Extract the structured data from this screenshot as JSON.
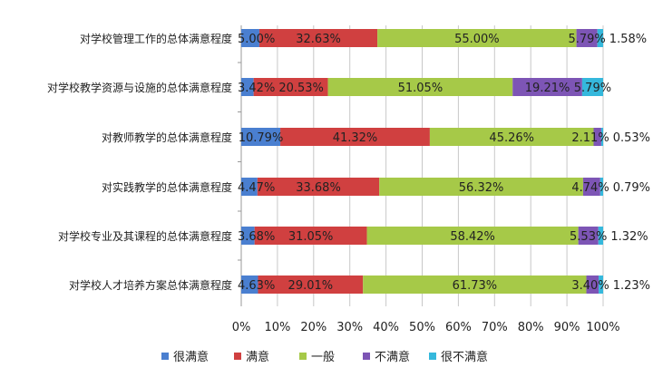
{
  "chart_data": {
    "type": "bar",
    "orientation": "horizontal",
    "stacked": true,
    "title": "",
    "xlabel": "",
    "ylabel": "",
    "xlim": [
      0,
      100
    ],
    "x_ticks": [
      "0%",
      "10%",
      "20%",
      "30%",
      "40%",
      "50%",
      "60%",
      "70%",
      "80%",
      "90%",
      "100%"
    ],
    "grid": true,
    "legend_position": "bottom",
    "categories": [
      "对学校管理工作的总体满意程度",
      "对学校教学资源与设施的总体满意程度",
      "对教师教学的总体满意程度",
      "对实践教学的总体满意程度",
      "对学校专业及其课程的总体满意程度",
      "对学校人才培养方案总体满意程度"
    ],
    "series": [
      {
        "name": "很满意",
        "color": "#4a7fd0",
        "values": [
          5.0,
          3.42,
          10.79,
          4.47,
          3.68,
          4.63
        ],
        "labels": [
          "5.00%",
          "3.42%",
          "10.79%",
          "4.47%",
          "3.68%",
          "4.63%"
        ]
      },
      {
        "name": "满意",
        "color": "#d04040",
        "values": [
          32.63,
          20.53,
          41.32,
          33.68,
          31.05,
          29.01
        ],
        "labels": [
          "32.63%",
          "20.53%",
          "41.32%",
          "33.68%",
          "31.05%",
          "29.01%"
        ]
      },
      {
        "name": "一般",
        "color": "#a6c948",
        "values": [
          55.0,
          51.05,
          45.26,
          56.32,
          58.42,
          61.73
        ],
        "labels": [
          "55.00%",
          "51.05%",
          "45.26%",
          "56.32%",
          "58.42%",
          "61.73%"
        ]
      },
      {
        "name": "不满意",
        "color": "#7d55b5",
        "values": [
          5.79,
          19.21,
          2.11,
          4.74,
          5.53,
          3.4
        ],
        "labels": [
          "5.79%",
          "19.21%",
          "2.11%",
          "4.74%",
          "5.53%",
          "3.40%"
        ]
      },
      {
        "name": "很不满意",
        "color": "#35b8dc",
        "values": [
          1.58,
          5.79,
          0.53,
          0.79,
          1.32,
          1.23
        ],
        "labels": [
          "1.58%",
          "5.79%",
          "0.53%",
          "0.79%",
          "1.32%",
          "1.23%"
        ]
      }
    ]
  }
}
